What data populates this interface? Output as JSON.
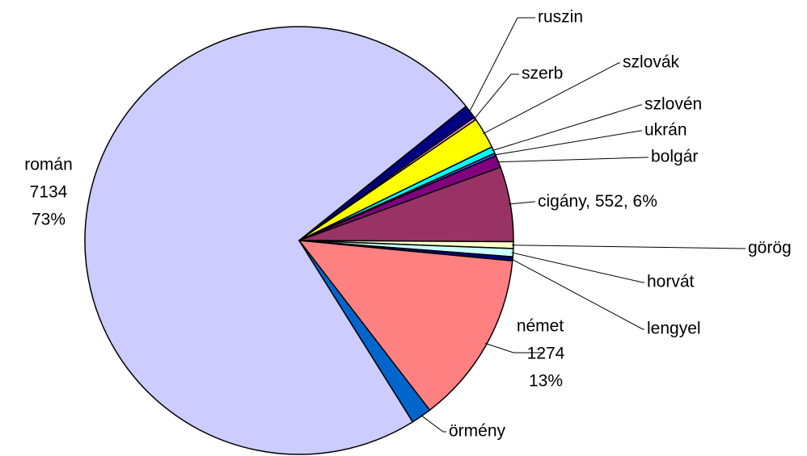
{
  "chart_data": {
    "type": "pie",
    "categories": [
      "román",
      "ruszin",
      "szerb",
      "szlovák",
      "szlovén",
      "ukrán",
      "bolgár",
      "cigány",
      "görög",
      "horvát",
      "lengyel",
      "német",
      "örmény"
    ],
    "values": [
      7134,
      100,
      20,
      230,
      50,
      20,
      90,
      552,
      50,
      60,
      30,
      1274,
      150
    ],
    "percent_labels": [
      "73%",
      null,
      null,
      null,
      null,
      null,
      null,
      "6%",
      null,
      null,
      null,
      "13%",
      null
    ],
    "label_separator": ", ",
    "colors": [
      "#ccccff",
      "#000080",
      "#ff99cc",
      "#ffff00",
      "#00ffff",
      "#3366ff",
      "#800080",
      "#993366",
      "#ffffcc",
      "#ccffff",
      "#000080",
      "#ff8080",
      "#0066cc"
    ]
  }
}
